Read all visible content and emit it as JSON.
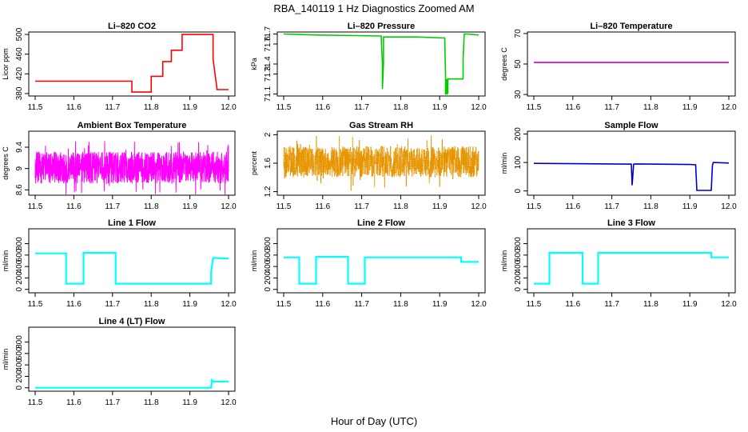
{
  "figure": {
    "title": "RBA_140119  1 Hz Diagnostics Zoomed AM",
    "xlabel": "Hour of Day (UTC)"
  },
  "chart_data": [
    {
      "id": "co2",
      "type": "line",
      "title": "Li–820 CO2",
      "ylabel": "Licor ppm",
      "color": "#ff0000",
      "xlim": [
        11.5,
        12.0
      ],
      "xticks": [
        11.5,
        11.6,
        11.7,
        11.8,
        11.9,
        12.0
      ],
      "ylim": [
        375,
        505
      ],
      "yticks": [
        380,
        420,
        460,
        500
      ],
      "mode": "line",
      "series": [
        {
          "name": "CO2",
          "x": [
            11.5,
            11.75,
            11.75,
            11.8,
            11.8,
            11.83,
            11.83,
            11.852,
            11.852,
            11.88,
            11.88,
            11.96,
            11.96,
            11.97,
            11.97,
            12.0
          ],
          "y": [
            405,
            405,
            383,
            383,
            415,
            415,
            445,
            445,
            468,
            468,
            500,
            500,
            450,
            390,
            388,
            388
          ]
        }
      ]
    },
    {
      "id": "pressure",
      "type": "line",
      "title": "Li–820 Pressure",
      "ylabel": "kPa",
      "color": "#00cc00",
      "xlim": [
        11.5,
        12.0
      ],
      "xticks": [
        11.5,
        11.6,
        11.7,
        11.8,
        11.9,
        12.0
      ],
      "ylim": [
        71.08,
        71.72
      ],
      "yticks": [
        71.1,
        71.3,
        71.4,
        71.6,
        71.7
      ],
      "mode": "line",
      "series": [
        {
          "name": "Pressure",
          "x": [
            11.5,
            11.59,
            11.75,
            11.753,
            11.753,
            11.756,
            11.756,
            11.76,
            11.84,
            11.913,
            11.915,
            11.915,
            11.918,
            11.918,
            11.921,
            11.921,
            11.96,
            11.96,
            11.963,
            11.97,
            12.0
          ],
          "y": [
            71.7,
            71.69,
            71.68,
            71.4,
            71.15,
            71.4,
            71.67,
            71.67,
            71.67,
            71.66,
            71.3,
            71.1,
            71.1,
            71.25,
            71.1,
            71.25,
            71.25,
            71.45,
            71.7,
            71.7,
            71.69
          ]
        }
      ]
    },
    {
      "id": "temperature",
      "type": "line",
      "title": "Li–820 Temperature",
      "ylabel": "degrees C",
      "color": "#cc00cc",
      "xlim": [
        11.5,
        12.0
      ],
      "xticks": [
        11.5,
        11.6,
        11.7,
        11.8,
        11.9,
        12.0
      ],
      "ylim": [
        29,
        71
      ],
      "yticks": [
        30,
        50,
        70
      ],
      "mode": "line",
      "series": [
        {
          "name": "Temperature",
          "x": [
            11.5,
            12.0
          ],
          "y": [
            51,
            51
          ]
        }
      ]
    },
    {
      "id": "ambient",
      "type": "line",
      "title": "Ambient Box Temperature",
      "ylabel": "degrees C",
      "color": "#ff00ff",
      "xlim": [
        11.5,
        12.0
      ],
      "xticks": [
        11.5,
        11.6,
        11.7,
        11.8,
        11.9,
        12.0
      ],
      "ylim": [
        8.5,
        9.7
      ],
      "yticks": [
        8.6,
        9.0,
        9.4
      ],
      "mode": "noise",
      "series": [
        {
          "name": "Ambient",
          "center": 9.02,
          "amplitude": 0.3,
          "spikes": 0.52,
          "samples": 1200
        }
      ]
    },
    {
      "id": "rh",
      "type": "scatter",
      "title": "Gas Stream RH",
      "ylabel": "percent",
      "color": "#e69500",
      "xlim": [
        11.5,
        12.0
      ],
      "xticks": [
        11.5,
        11.6,
        11.7,
        11.8,
        11.9,
        12.0
      ],
      "ylim": [
        1.15,
        2.05
      ],
      "yticks": [
        1.2,
        1.6,
        2.0
      ],
      "mode": "noise",
      "series": [
        {
          "name": "RH",
          "center": 1.62,
          "amplitude": 0.22,
          "spikes": 0.42,
          "samples": 1200
        }
      ]
    },
    {
      "id": "sample",
      "type": "line",
      "title": "Sample Flow",
      "ylabel": "ml/min",
      "color": "#0000cc",
      "xlim": [
        11.5,
        12.0
      ],
      "xticks": [
        11.5,
        11.6,
        11.7,
        11.8,
        11.9,
        12.0
      ],
      "ylim": [
        -15,
        210
      ],
      "yticks": [
        0,
        100,
        200
      ],
      "mode": "line",
      "series": [
        {
          "name": "Sample",
          "x": [
            11.5,
            11.75,
            11.752,
            11.756,
            11.76,
            11.9,
            11.915,
            11.918,
            11.955,
            11.958,
            11.96,
            12.0
          ],
          "y": [
            97,
            94,
            20,
            94,
            95,
            93,
            92,
            2,
            2,
            90,
            100,
            98
          ]
        }
      ]
    },
    {
      "id": "line1",
      "type": "line",
      "title": "Line 1 Flow",
      "ylabel": "ml/min",
      "color": "#00ffff",
      "xlim": [
        11.5,
        12.0
      ],
      "xticks": [
        11.5,
        11.6,
        11.7,
        11.8,
        11.9,
        12.0
      ],
      "ylim": [
        -60,
        1060
      ],
      "yticks": [
        0,
        200,
        400,
        600,
        800
      ],
      "mode": "line",
      "series": [
        {
          "name": "Line1",
          "x": [
            11.5,
            11.58,
            11.58,
            11.625,
            11.625,
            11.708,
            11.708,
            11.955,
            11.955,
            11.96,
            11.96,
            12.0
          ],
          "y": [
            630,
            630,
            100,
            100,
            640,
            640,
            100,
            100,
            300,
            550,
            550,
            540
          ]
        }
      ]
    },
    {
      "id": "line2",
      "type": "line",
      "title": "Line 2 Flow",
      "ylabel": "ml/min",
      "color": "#00ffff",
      "xlim": [
        11.5,
        12.0
      ],
      "xticks": [
        11.5,
        11.6,
        11.7,
        11.8,
        11.9,
        12.0
      ],
      "ylim": [
        -60,
        1060
      ],
      "yticks": [
        0,
        200,
        400,
        600,
        800
      ],
      "mode": "line",
      "series": [
        {
          "name": "Line2",
          "x": [
            11.5,
            11.54,
            11.54,
            11.583,
            11.583,
            11.665,
            11.665,
            11.708,
            11.708,
            11.955,
            11.955,
            12.0
          ],
          "y": [
            560,
            560,
            100,
            100,
            570,
            570,
            100,
            100,
            560,
            560,
            480,
            480
          ]
        }
      ]
    },
    {
      "id": "line3",
      "type": "line",
      "title": "Line 3 Flow",
      "ylabel": "ml/min",
      "color": "#00ffff",
      "xlim": [
        11.5,
        12.0
      ],
      "xticks": [
        11.5,
        11.6,
        11.7,
        11.8,
        11.9,
        12.0
      ],
      "ylim": [
        -60,
        1060
      ],
      "yticks": [
        0,
        200,
        400,
        600,
        800
      ],
      "mode": "line",
      "series": [
        {
          "name": "Line3",
          "x": [
            11.5,
            11.54,
            11.54,
            11.625,
            11.625,
            11.665,
            11.665,
            11.955,
            11.955,
            12.0
          ],
          "y": [
            100,
            100,
            640,
            640,
            100,
            100,
            640,
            640,
            560,
            560
          ]
        }
      ]
    },
    {
      "id": "line4",
      "type": "line",
      "title": "Line 4 (LT) Flow",
      "ylabel": "ml/min",
      "color": "#00ffff",
      "xlim": [
        11.5,
        12.0
      ],
      "xticks": [
        11.5,
        11.6,
        11.7,
        11.8,
        11.9,
        12.0
      ],
      "ylim": [
        -60,
        1060
      ],
      "yticks": [
        0,
        200,
        400,
        600,
        800
      ],
      "mode": "line",
      "series": [
        {
          "name": "Line4",
          "x": [
            11.5,
            11.955,
            11.957,
            11.96,
            12.0
          ],
          "y": [
            0,
            0,
            130,
            110,
            110
          ]
        }
      ]
    }
  ]
}
